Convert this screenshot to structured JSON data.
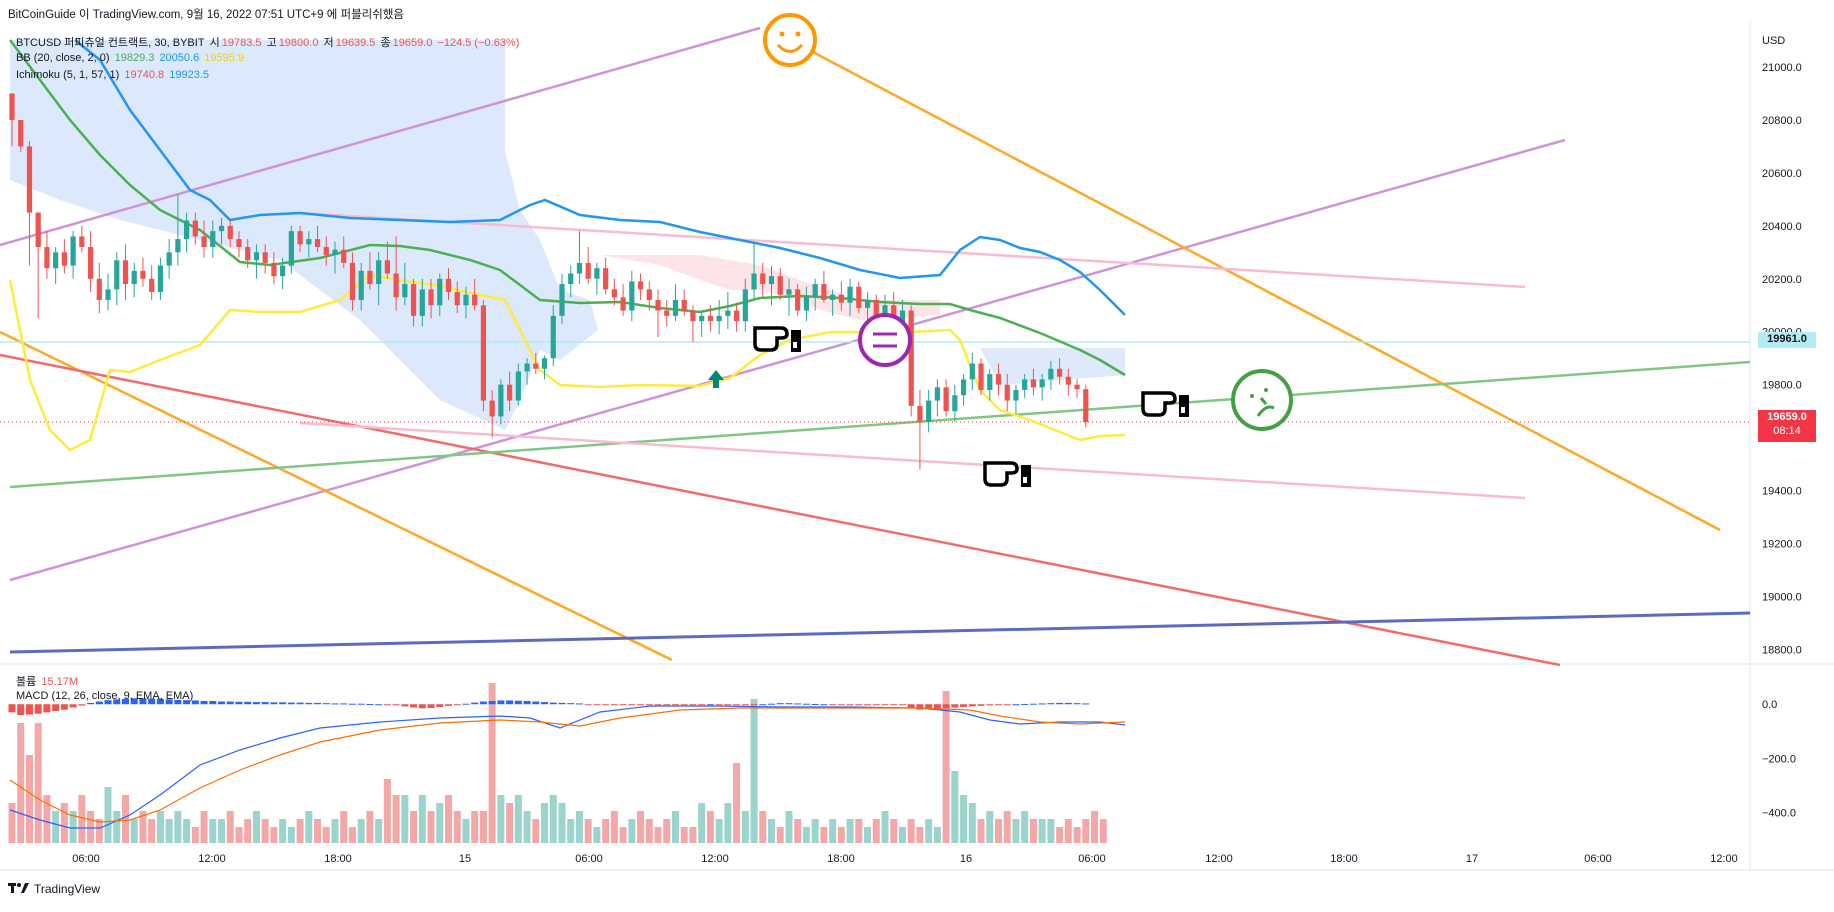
{
  "header": {
    "attribution": "BitCoinGuide 이 TradingView.com, 9월 16, 2022 07:51 UTC+9 에 퍼블리쉬했음"
  },
  "legend": {
    "symbol": "BTCUSD 퍼피츄얼 컨트랙트, 30, BYBIT",
    "open_label": "시",
    "open": "19783.5",
    "high_label": "고",
    "high": "19800.0",
    "low_label": "저",
    "low": "19639.5",
    "close_label": "종",
    "close": "19659.0",
    "change": "−124.5 (−0.63%)",
    "bb_label": "BB (20, close, 2, 0)",
    "bb_basis": "19829.3",
    "bb_upper": "20050.6",
    "bb_lower": "19595.9",
    "ichimoku_label": "Ichimoku (5, 1, 57, 1)",
    "ichi_a": "19740.8",
    "ichi_b": "19923.5"
  },
  "volume_legend": {
    "label": "볼륨",
    "value": "15.17M"
  },
  "macd_legend": {
    "label": "MACD (12, 26, close, 9, EMA, EMA)"
  },
  "badges": {
    "level_price": "19961.0",
    "last_price": "19659.0",
    "countdown": "08:14"
  },
  "brand": "TradingView",
  "colors": {
    "up": "#26a69a",
    "down": "#ef5350",
    "bb_basis": "#4caf50",
    "bb_upper": "#2196f3",
    "bb_lower": "#ffeb3b",
    "cloud": "#d6e4fb",
    "purple_line": "#ce93d8",
    "orange_line": "#ffa726",
    "red_line": "#f06c6c",
    "green_line": "#81c784",
    "navy_line": "#5c6bc0",
    "pink_line": "#f8bbd0",
    "macd_line": "#2962ff",
    "signal_line": "#ff6d00",
    "hist_pos": "#2962ff",
    "hist_neg": "#ef5350"
  },
  "icons": [
    "smiley-orange-icon",
    "neutral-face-purple-icon",
    "worried-face-green-icon",
    "pointing-hand-icon",
    "up-arrow-icon",
    "tradingview-logo-icon"
  ],
  "chart_data": {
    "type": "candlestick",
    "price_axis": {
      "currency": "USD",
      "ticks": [
        "21000.0",
        "20800.0",
        "20600.0",
        "20400.0",
        "20200.0",
        "20000.0",
        "19800.0",
        "19600.0",
        "19400.0",
        "19200.0",
        "19000.0",
        "18800.0"
      ],
      "range": [
        18760,
        21170
      ]
    },
    "time_axis": {
      "ticks": [
        "06:00",
        "12:00",
        "18:00",
        "15",
        "06:00",
        "12:00",
        "18:00",
        "16",
        "06:00",
        "12:00",
        "18:00",
        "17",
        "06:00",
        "12:00"
      ]
    },
    "candles": [
      [
        20900,
        20900,
        20700,
        20800
      ],
      [
        20800,
        20800,
        20680,
        20700
      ],
      [
        20700,
        20720,
        20250,
        20450
      ],
      [
        20450,
        20450,
        20050,
        20320
      ],
      [
        20320,
        20380,
        20200,
        20240
      ],
      [
        20240,
        20320,
        20180,
        20300
      ],
      [
        20300,
        20350,
        20220,
        20250
      ],
      [
        20250,
        20380,
        20200,
        20360
      ],
      [
        20360,
        20400,
        20300,
        20320
      ],
      [
        20320,
        20380,
        20150,
        20200
      ],
      [
        20200,
        20260,
        20070,
        20120
      ],
      [
        20120,
        20220,
        20080,
        20160
      ],
      [
        20160,
        20300,
        20100,
        20270
      ],
      [
        20270,
        20330,
        20120,
        20180
      ],
      [
        20180,
        20260,
        20130,
        20230
      ],
      [
        20230,
        20280,
        20170,
        20200
      ],
      [
        20200,
        20250,
        20120,
        20150
      ],
      [
        20150,
        20280,
        20120,
        20250
      ],
      [
        20250,
        20350,
        20200,
        20300
      ],
      [
        20300,
        20520,
        20250,
        20350
      ],
      [
        20350,
        20450,
        20300,
        20420
      ],
      [
        20420,
        20450,
        20330,
        20360
      ],
      [
        20360,
        20420,
        20280,
        20320
      ],
      [
        20320,
        20420,
        20280,
        20380
      ],
      [
        20380,
        20430,
        20330,
        20400
      ],
      [
        20400,
        20420,
        20320,
        20350
      ],
      [
        20350,
        20380,
        20280,
        20320
      ],
      [
        20320,
        20350,
        20240,
        20270
      ],
      [
        20270,
        20330,
        20200,
        20300
      ],
      [
        20300,
        20330,
        20220,
        20260
      ],
      [
        20260,
        20300,
        20180,
        20210
      ],
      [
        20210,
        20280,
        20160,
        20250
      ],
      [
        20250,
        20400,
        20220,
        20380
      ],
      [
        20380,
        20400,
        20300,
        20330
      ],
      [
        20330,
        20380,
        20280,
        20350
      ],
      [
        20350,
        20400,
        20300,
        20320
      ],
      [
        20320,
        20360,
        20250,
        20290
      ],
      [
        20290,
        20340,
        20220,
        20310
      ],
      [
        20310,
        20360,
        20240,
        20260
      ],
      [
        20260,
        20300,
        20080,
        20120
      ],
      [
        20120,
        20260,
        20080,
        20230
      ],
      [
        20230,
        20300,
        20160,
        20180
      ],
      [
        20180,
        20300,
        20100,
        20270
      ],
      [
        20270,
        20340,
        20200,
        20220
      ],
      [
        20220,
        20360,
        20080,
        20130
      ],
      [
        20130,
        20260,
        20100,
        20180
      ],
      [
        20180,
        20200,
        20020,
        20060
      ],
      [
        20060,
        20200,
        20020,
        20160
      ],
      [
        20160,
        20200,
        20050,
        20100
      ],
      [
        20100,
        20220,
        20060,
        20200
      ],
      [
        20200,
        20240,
        20120,
        20150
      ],
      [
        20150,
        20190,
        20070,
        20100
      ],
      [
        20100,
        20170,
        20050,
        20140
      ],
      [
        20140,
        20200,
        20080,
        20100
      ],
      [
        20100,
        20120,
        19700,
        19740
      ],
      [
        19740,
        19780,
        19600,
        19680
      ],
      [
        19680,
        19820,
        19650,
        19800
      ],
      [
        19800,
        19850,
        19700,
        19740
      ],
      [
        19740,
        19880,
        19720,
        19850
      ],
      [
        19850,
        19900,
        19800,
        19880
      ],
      [
        19880,
        19920,
        19840,
        19860
      ],
      [
        19860,
        19910,
        19820,
        19900
      ],
      [
        19900,
        20100,
        19870,
        20060
      ],
      [
        20060,
        20220,
        20030,
        20180
      ],
      [
        20180,
        20250,
        20130,
        20220
      ],
      [
        20220,
        20380,
        20180,
        20260
      ],
      [
        20260,
        20320,
        20180,
        20200
      ],
      [
        20200,
        20260,
        20140,
        20240
      ],
      [
        20240,
        20280,
        20140,
        20160
      ],
      [
        20160,
        20200,
        20100,
        20130
      ],
      [
        20130,
        20180,
        20060,
        20080
      ],
      [
        20080,
        20230,
        20040,
        20190
      ],
      [
        20190,
        20220,
        20120,
        20160
      ],
      [
        20160,
        20190,
        20080,
        20120
      ],
      [
        20120,
        20160,
        19980,
        20080
      ],
      [
        20080,
        20120,
        20020,
        20060
      ],
      [
        20060,
        20180,
        20040,
        20120
      ],
      [
        20120,
        20160,
        20060,
        20080
      ],
      [
        20080,
        20100,
        19960,
        20040
      ],
      [
        20040,
        20080,
        19980,
        20060
      ],
      [
        20060,
        20100,
        20000,
        20040
      ],
      [
        20040,
        20120,
        19990,
        20060
      ],
      [
        20060,
        20150,
        20010,
        20080
      ],
      [
        20080,
        20110,
        20000,
        20040
      ],
      [
        20040,
        20200,
        20000,
        20160
      ],
      [
        20160,
        20340,
        20120,
        20220
      ],
      [
        20220,
        20260,
        20130,
        20180
      ],
      [
        20180,
        20250,
        20100,
        20210
      ],
      [
        20210,
        20240,
        20120,
        20140
      ],
      [
        20140,
        20200,
        20060,
        20160
      ],
      [
        20160,
        20180,
        20060,
        20080
      ],
      [
        20080,
        20170,
        20040,
        20130
      ],
      [
        20130,
        20200,
        20080,
        20180
      ],
      [
        20180,
        20230,
        20110,
        20120
      ],
      [
        20120,
        20160,
        20060,
        20140
      ],
      [
        20140,
        20190,
        20080,
        20110
      ],
      [
        20110,
        20200,
        20060,
        20170
      ],
      [
        20170,
        20190,
        20070,
        20090
      ],
      [
        20090,
        20150,
        20030,
        20120
      ],
      [
        20120,
        20140,
        20010,
        20050
      ],
      [
        20050,
        20140,
        20020,
        20100
      ],
      [
        20100,
        20150,
        20000,
        20030
      ],
      [
        20030,
        20120,
        19990,
        20080
      ],
      [
        20080,
        20100,
        19680,
        19720
      ],
      [
        19720,
        19780,
        19480,
        19660
      ],
      [
        19660,
        19780,
        19620,
        19740
      ],
      [
        19740,
        19820,
        19680,
        19790
      ],
      [
        19790,
        19820,
        19680,
        19700
      ],
      [
        19700,
        19800,
        19660,
        19760
      ],
      [
        19760,
        19840,
        19720,
        19820
      ],
      [
        19820,
        19920,
        19780,
        19880
      ],
      [
        19880,
        19900,
        19760,
        19780
      ],
      [
        19780,
        19860,
        19740,
        19840
      ],
      [
        19840,
        19880,
        19760,
        19800
      ],
      [
        19800,
        19840,
        19700,
        19740
      ],
      [
        19740,
        19800,
        19690,
        19780
      ],
      [
        19780,
        19840,
        19750,
        19820
      ],
      [
        19820,
        19860,
        19760,
        19790
      ],
      [
        19790,
        19840,
        19740,
        19820
      ],
      [
        19820,
        19890,
        19780,
        19860
      ],
      [
        19860,
        19900,
        19800,
        19830
      ],
      [
        19830,
        19860,
        19760,
        19800
      ],
      [
        19800,
        19820,
        19750,
        19783
      ],
      [
        19783,
        19800,
        19639,
        19659
      ]
    ],
    "volume_bars_relative": [
      0.25,
      0.75,
      0.55,
      0.75,
      0.3,
      0.2,
      0.25,
      0.2,
      0.3,
      0.2,
      0.15,
      0.35,
      0.2,
      0.3,
      0.15,
      0.2,
      0.15,
      0.2,
      0.15,
      0.2,
      0.15,
      0.1,
      0.2,
      0.15,
      0.15,
      0.2,
      0.1,
      0.15,
      0.2,
      0.15,
      0.1,
      0.15,
      0.1,
      0.15,
      0.2,
      0.15,
      0.1,
      0.15,
      0.2,
      0.1,
      0.15,
      0.2,
      0.15,
      0.4,
      0.3,
      0.3,
      0.2,
      0.3,
      0.2,
      0.25,
      0.3,
      0.2,
      0.15,
      0.2,
      0.2,
      1.0,
      0.3,
      0.25,
      0.3,
      0.2,
      0.15,
      0.25,
      0.3,
      0.25,
      0.15,
      0.2,
      0.15,
      0.1,
      0.15,
      0.2,
      0.1,
      0.15,
      0.2,
      0.15,
      0.1,
      0.15,
      0.2,
      0.1,
      0.1,
      0.25,
      0.2,
      0.15,
      0.25,
      0.5,
      0.2,
      0.9,
      0.2,
      0.15,
      0.1,
      0.2,
      0.15,
      0.1,
      0.15,
      0.1,
      0.15,
      0.1,
      0.15,
      0.15,
      0.1,
      0.15,
      0.2,
      0.15,
      0.1,
      0.15,
      0.1,
      0.15,
      0.1,
      0.95,
      0.45,
      0.3,
      0.25,
      0.15,
      0.2,
      0.15,
      0.2,
      0.15,
      0.2,
      0.15,
      0.15,
      0.15,
      0.1,
      0.15,
      0.1,
      0.15,
      0.2,
      0.15
    ],
    "macd_axis": {
      "ticks": [
        "0.0",
        "−200.0",
        "−400.0"
      ],
      "range": [
        -520,
        60
      ]
    }
  }
}
